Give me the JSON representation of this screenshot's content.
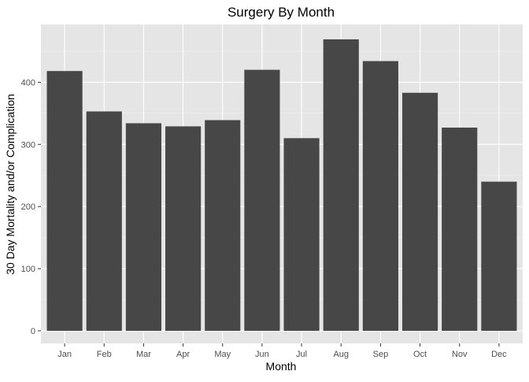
{
  "chart_data": {
    "type": "bar",
    "title": "Surgery By Month",
    "xlabel": "Month",
    "ylabel": "30 Day Mortality and/or Complication",
    "categories": [
      "Jan",
      "Feb",
      "Mar",
      "Apr",
      "May",
      "Jun",
      "Jul",
      "Aug",
      "Sep",
      "Oct",
      "Nov",
      "Dec"
    ],
    "values": [
      418,
      353,
      334,
      329,
      339,
      420,
      310,
      469,
      434,
      383,
      327,
      240
    ],
    "ylim": [
      -25,
      494
    ],
    "yticks": [
      0,
      100,
      200,
      300,
      400
    ],
    "ytick_labels": [
      "0",
      "100",
      "200",
      "300",
      "400"
    ],
    "grid": true,
    "legend": "none",
    "colors": {
      "bar": "#474747",
      "panel_background": "#e5e5e5",
      "grid_major": "#ffffff",
      "grid_minor": "#f2f2f2",
      "tick_label": "#4d4d4d",
      "tick_mark": "#333333"
    }
  }
}
